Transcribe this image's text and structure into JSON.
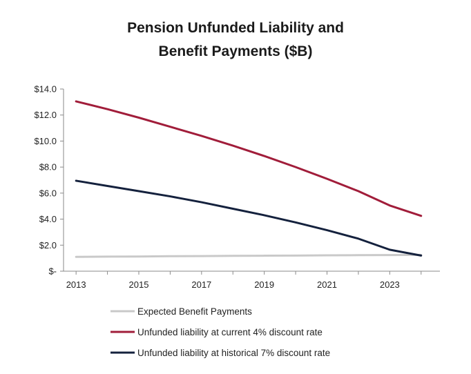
{
  "chart_data": {
    "type": "line",
    "title_line1": "Pension Unfunded Liability and",
    "title_line2": "Benefit Payments ($B)",
    "x": [
      2013,
      2014,
      2015,
      2016,
      2017,
      2018,
      2019,
      2020,
      2021,
      2022,
      2023,
      2024
    ],
    "xticks": [
      "2013",
      "2015",
      "2017",
      "2019",
      "2021",
      "2023"
    ],
    "xtick_values": [
      2013,
      2015,
      2017,
      2019,
      2021,
      2023
    ],
    "yticks": [
      "$-",
      "$2.0",
      "$4.0",
      "$6.0",
      "$8.0",
      "$10.0",
      "$12.0",
      "$14.0"
    ],
    "ytick_values": [
      0,
      2,
      4,
      6,
      8,
      10,
      12,
      14
    ],
    "xlim": [
      2012.6,
      2024.6
    ],
    "ylim": [
      0,
      14
    ],
    "series": [
      {
        "name": "Expected Benefit Payments",
        "color": "#c9c9c9",
        "values": [
          1.1,
          1.12,
          1.13,
          1.15,
          1.16,
          1.18,
          1.19,
          1.2,
          1.22,
          1.23,
          1.24,
          1.25
        ]
      },
      {
        "name": "Unfunded liability at current 4% discount rate",
        "color": "#a11d3a",
        "values": [
          13.05,
          12.45,
          11.8,
          11.1,
          10.4,
          9.65,
          8.85,
          8.0,
          7.1,
          6.15,
          5.05,
          4.25
        ]
      },
      {
        "name": "Unfunded liability at historical 7% discount rate",
        "color": "#14213d",
        "values": [
          6.95,
          6.55,
          6.15,
          5.75,
          5.3,
          4.8,
          4.3,
          3.75,
          3.15,
          2.5,
          1.65,
          1.2
        ]
      }
    ],
    "legend_position": "bottom"
  }
}
